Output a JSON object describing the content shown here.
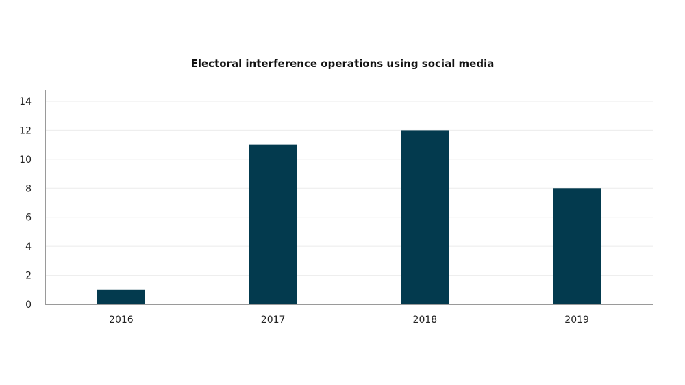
{
  "chart_data": {
    "type": "bar",
    "title": "Electoral interference operations using social media",
    "xlabel": "",
    "ylabel": "",
    "categories": [
      "2016",
      "2017",
      "2018",
      "2019"
    ],
    "values": [
      1,
      11,
      12,
      8
    ],
    "ylim": [
      0,
      14
    ],
    "yticks": [
      0,
      2,
      4,
      6,
      8,
      10,
      12,
      14
    ],
    "grid": true,
    "legend": "none",
    "colors": {
      "bar": "#033a4e",
      "axis": "#9a9a9a",
      "grid": "#ebebeb"
    }
  }
}
